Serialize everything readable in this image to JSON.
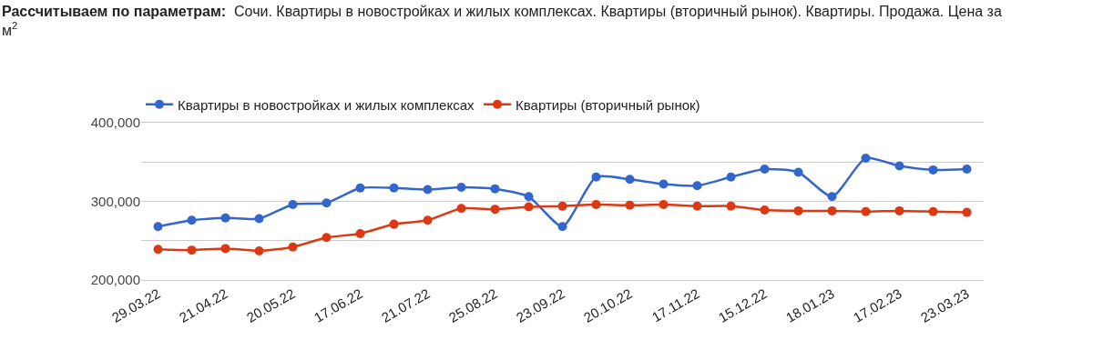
{
  "chart_data": {
    "type": "line",
    "title": "Рассчитываем по параметрам:",
    "subtitle": "Сочи. Квартиры в новостройках и жилых комплексах. Квартиры (вторичный рынок). Квартиры. Продажа. Цена за м$^{2}$",
    "categories": [
      "29.03.22",
      null,
      "21.04.22",
      null,
      "20.05.22",
      null,
      "17.06.22",
      null,
      "21.07.22",
      null,
      "25.08.22",
      null,
      "23.09.22",
      null,
      "20.10.22",
      null,
      "17.11.22",
      null,
      "15.12.22",
      null,
      "18.01.23",
      null,
      "17.02.23",
      null,
      "23.03.23"
    ],
    "series": [
      {
        "name": "Квартиры в новостройках и жилых комплексах",
        "color": "#3366cc",
        "values": [
          268000,
          276000,
          279000,
          278000,
          296000,
          298000,
          317000,
          317000,
          315000,
          318000,
          316000,
          306000,
          268000,
          331000,
          328000,
          322000,
          320000,
          331000,
          341000,
          337000,
          306000,
          355000,
          345000,
          340000,
          341000
        ]
      },
      {
        "name": "Квартиры (вторичный рынок)",
        "color": "#dc3912",
        "values": [
          239000,
          238000,
          240000,
          237000,
          242000,
          254000,
          259000,
          271000,
          276000,
          291000,
          290000,
          293000,
          294000,
          296000,
          295000,
          296000,
          294000,
          294000,
          289000,
          288000,
          288000,
          287000,
          288000,
          287000,
          286000
        ]
      }
    ],
    "ylim": [
      200000,
      400000
    ],
    "yticks": [
      {
        "value": 200000,
        "label": "200,000"
      },
      {
        "value": 250000,
        "label": null
      },
      {
        "value": 300000,
        "label": "300,000"
      },
      {
        "value": 350000,
        "label": null
      },
      {
        "value": 400000,
        "label": "400,000"
      }
    ],
    "grid": "y",
    "legend": "top left",
    "marker": "circle",
    "line_style": "solid"
  }
}
